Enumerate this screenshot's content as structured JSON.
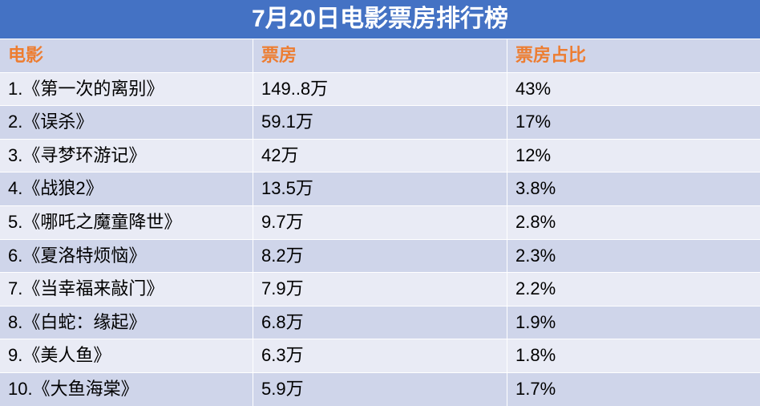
{
  "title": "7月20日电影票房排行榜",
  "table": {
    "header": [
      "电影",
      "票房",
      "票房占比"
    ],
    "rows": [
      [
        "1.《第一次的离别》",
        "149..8万",
        "43%"
      ],
      [
        "2.《误杀》",
        "59.1万",
        "17%"
      ],
      [
        "3.《寻梦环游记》",
        "42万",
        "12%"
      ],
      [
        "4.《战狼2》",
        "13.5万",
        "3.8%"
      ],
      [
        "5.《哪吒之魔童降世》",
        "9.7万",
        "2.8%"
      ],
      [
        "6.《夏洛特烦恼》",
        "8.2万",
        "2.3%"
      ],
      [
        "7.《当幸福来敲门》",
        "7.9万",
        "2.2%"
      ],
      [
        "8.《白蛇：缘起》",
        "6.8万",
        "1.9%"
      ],
      [
        "9.《美人鱼》",
        "6.3万",
        "1.8%"
      ],
      [
        "10.《大鱼海棠》",
        "5.9万",
        "1.7%"
      ]
    ]
  }
}
